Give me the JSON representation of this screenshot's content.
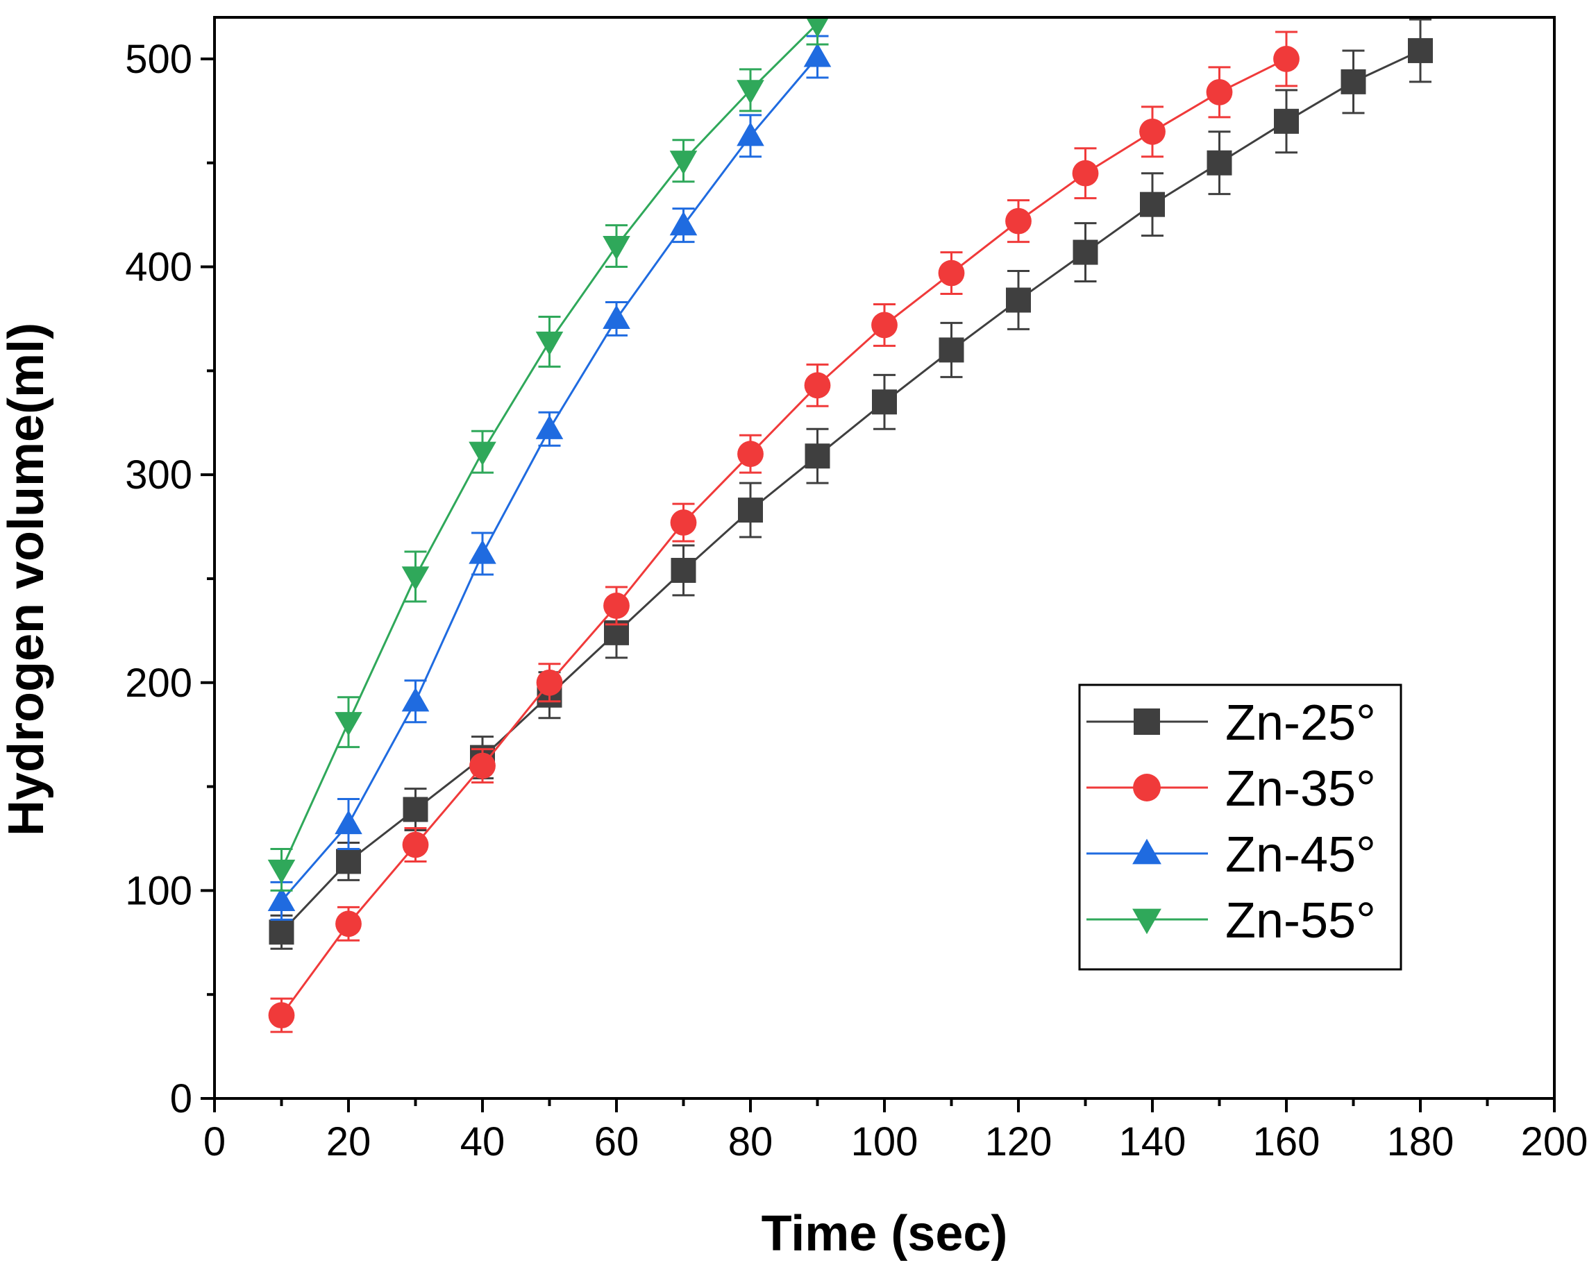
{
  "chart_data": {
    "type": "line",
    "title": "",
    "xlabel": "Time (sec)",
    "ylabel": "Hydrogen volume(ml)",
    "xlim": [
      0,
      200
    ],
    "ylim": [
      0,
      520
    ],
    "xticks": [
      0,
      20,
      40,
      60,
      80,
      100,
      120,
      140,
      160,
      180,
      200
    ],
    "yticks": [
      0,
      100,
      200,
      300,
      400,
      500
    ],
    "grid": false,
    "legend_position": "bottom-right",
    "series": [
      {
        "name": "Zn-25°",
        "color": "#3f3f3f",
        "marker": "square",
        "x": [
          10,
          20,
          30,
          40,
          50,
          60,
          70,
          80,
          90,
          100,
          110,
          120,
          130,
          140,
          150,
          160,
          170,
          180
        ],
        "y": [
          80,
          114,
          139,
          164,
          194,
          224,
          254,
          283,
          309,
          335,
          360,
          384,
          407,
          430,
          450,
          470,
          489,
          504
        ],
        "err": [
          8,
          9,
          10,
          10,
          11,
          12,
          12,
          13,
          13,
          13,
          13,
          14,
          14,
          15,
          15,
          15,
          15,
          15
        ]
      },
      {
        "name": "Zn-35°",
        "color": "#f03a3a",
        "marker": "circle",
        "x": [
          10,
          20,
          30,
          40,
          50,
          60,
          70,
          80,
          90,
          100,
          110,
          120,
          130,
          140,
          150,
          160
        ],
        "y": [
          40,
          84,
          122,
          160,
          200,
          237,
          277,
          310,
          343,
          372,
          397,
          422,
          445,
          465,
          484,
          500
        ],
        "err": [
          8,
          8,
          8,
          8,
          9,
          9,
          9,
          9,
          10,
          10,
          10,
          10,
          12,
          12,
          12,
          13
        ]
      },
      {
        "name": "Zn-45°",
        "color": "#1f6be0",
        "marker": "triangle-up",
        "x": [
          10,
          20,
          30,
          40,
          50,
          60,
          70,
          80,
          90
        ],
        "y": [
          95,
          132,
          191,
          262,
          322,
          375,
          420,
          463,
          501
        ],
        "err": [
          9,
          12,
          10,
          10,
          8,
          8,
          8,
          10,
          10
        ]
      },
      {
        "name": "Zn-55°",
        "color": "#2fa85a",
        "marker": "triangle-down",
        "x": [
          10,
          20,
          30,
          40,
          50,
          60,
          70,
          80,
          90
        ],
        "y": [
          110,
          181,
          251,
          311,
          364,
          410,
          451,
          485,
          517
        ],
        "err": [
          10,
          12,
          12,
          10,
          12,
          10,
          10,
          10,
          10
        ]
      }
    ]
  }
}
